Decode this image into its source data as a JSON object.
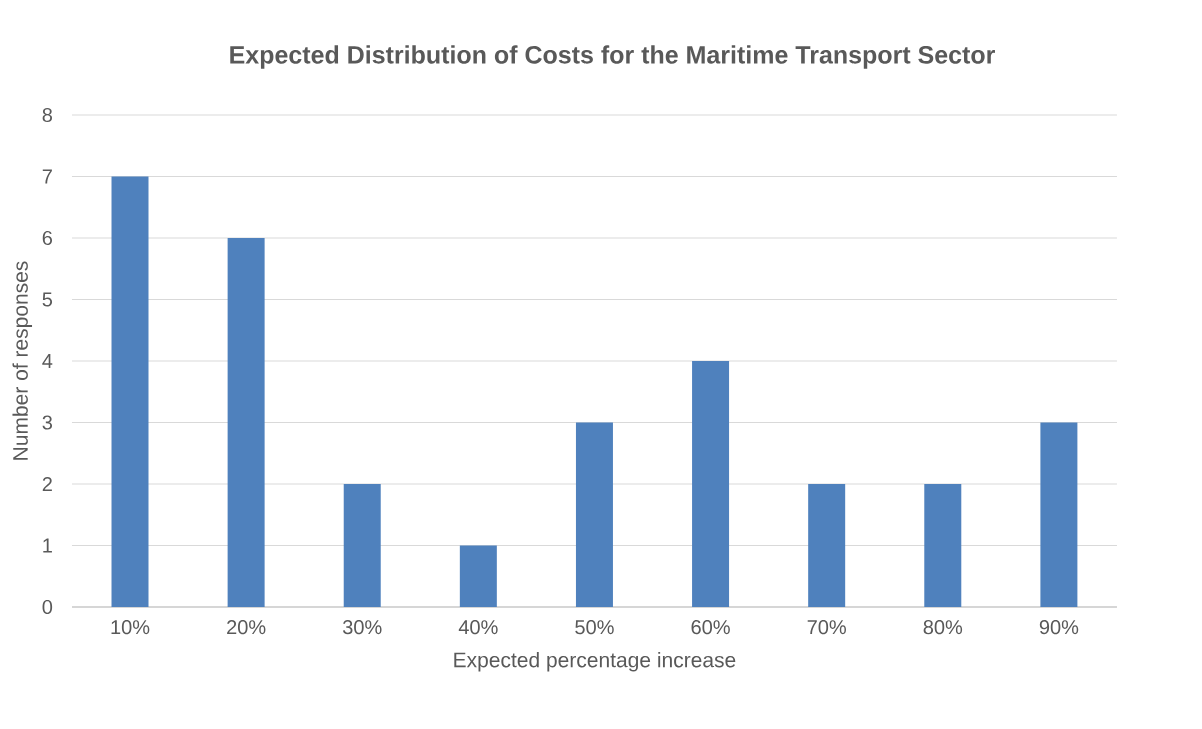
{
  "chart_data": {
    "type": "bar",
    "title": "Expected Distribution of Costs for the Maritime Transport Sector",
    "xlabel": "Expected percentage increase",
    "ylabel": "Number of responses",
    "categories": [
      "10%",
      "20%",
      "30%",
      "40%",
      "50%",
      "60%",
      "70%",
      "80%",
      "90%"
    ],
    "values": [
      7,
      6,
      2,
      1,
      3,
      4,
      2,
      2,
      3
    ],
    "color": "#4f81bd",
    "ylim": [
      0,
      8
    ],
    "yticks": [
      0,
      1,
      2,
      3,
      4,
      5,
      6,
      7,
      8
    ],
    "grid": "y"
  }
}
